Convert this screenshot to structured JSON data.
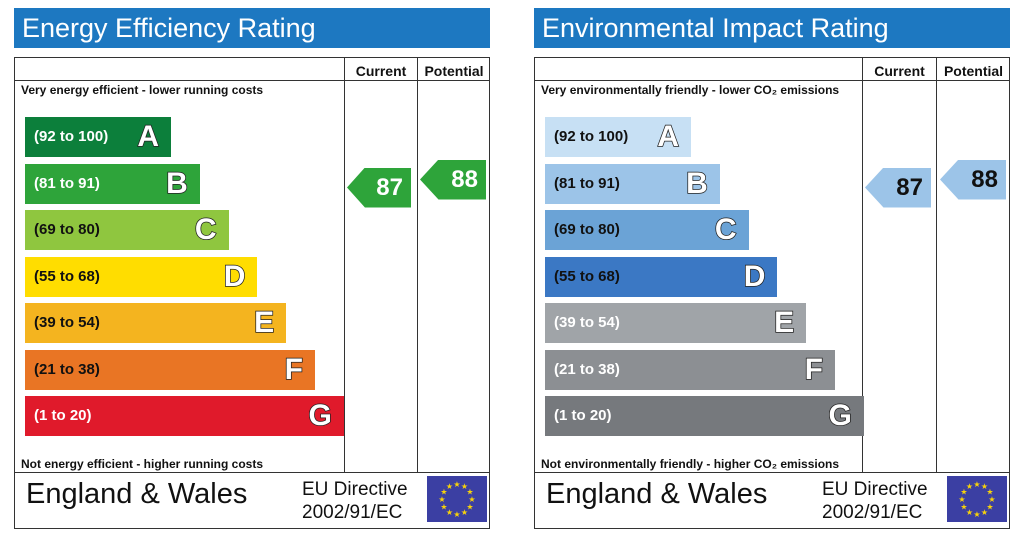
{
  "colors": {
    "header_bg": "#1d78c1",
    "flag_bg": "#3b3fa3",
    "flag_stars": "#f7d20b",
    "energy_bands": [
      "#0c7f3b",
      "#2ea43a",
      "#8fc63f",
      "#ffdd00",
      "#f4b41f",
      "#e97524",
      "#e01a2b"
    ],
    "environment_bands": [
      "#c7e0f4",
      "#9cc4e8",
      "#6ba3d6",
      "#3b78c4",
      "#a0a4a8",
      "#8c8f93",
      "#76797d"
    ]
  },
  "panels": [
    {
      "title": "Energy Efficiency Rating",
      "col_current": "Current",
      "col_potential": "Potential",
      "top_note": "Very energy efficient - lower running costs",
      "bottom_note": "Not energy efficient - higher running costs",
      "region": "England & Wales",
      "directive_line1": "EU Directive",
      "directive_line2": "2002/91/EC",
      "flag_icon": "eu-flag-icon",
      "bands": [
        {
          "range": "(92 to 100)",
          "letter": "A"
        },
        {
          "range": "(81 to 91)",
          "letter": "B"
        },
        {
          "range": "(69 to 80)",
          "letter": "C"
        },
        {
          "range": "(55 to 68)",
          "letter": "D"
        },
        {
          "range": "(39 to 54)",
          "letter": "E"
        },
        {
          "range": "(21 to 38)",
          "letter": "F"
        },
        {
          "range": "(1 to 20)",
          "letter": "G"
        }
      ],
      "current": {
        "value": "87",
        "band": "B"
      },
      "potential": {
        "value": "88",
        "band": "B"
      }
    },
    {
      "title": "Environmental Impact Rating",
      "col_current": "Current",
      "col_potential": "Potential",
      "top_note": "Very environmentally friendly - lower CO₂ emissions",
      "bottom_note": "Not environmentally friendly - higher CO₂ emissions",
      "region": "England & Wales",
      "directive_line1": "EU Directive",
      "directive_line2": "2002/91/EC",
      "flag_icon": "eu-flag-icon",
      "bands": [
        {
          "range": "(92 to 100)",
          "letter": "A"
        },
        {
          "range": "(81 to 91)",
          "letter": "B"
        },
        {
          "range": "(69 to 80)",
          "letter": "C"
        },
        {
          "range": "(55 to 68)",
          "letter": "D"
        },
        {
          "range": "(39 to 54)",
          "letter": "E"
        },
        {
          "range": "(21 to 38)",
          "letter": "F"
        },
        {
          "range": "(1 to 20)",
          "letter": "G"
        }
      ],
      "current": {
        "value": "87",
        "band": "B"
      },
      "potential": {
        "value": "88",
        "band": "B"
      }
    }
  ],
  "chart_data": [
    {
      "type": "bar",
      "title": "Energy Efficiency Rating",
      "categories": [
        "A",
        "B",
        "C",
        "D",
        "E",
        "F",
        "G"
      ],
      "ranges": [
        "(92 to 100)",
        "(81 to 91)",
        "(69 to 80)",
        "(55 to 68)",
        "(39 to 54)",
        "(21 to 38)",
        "(1 to 20)"
      ],
      "series": [
        {
          "name": "Current",
          "value": 87,
          "band": "B"
        },
        {
          "name": "Potential",
          "value": 88,
          "band": "B"
        }
      ]
    },
    {
      "type": "bar",
      "title": "Environmental Impact Rating",
      "categories": [
        "A",
        "B",
        "C",
        "D",
        "E",
        "F",
        "G"
      ],
      "ranges": [
        "(92 to 100)",
        "(81 to 91)",
        "(69 to 80)",
        "(55 to 68)",
        "(39 to 54)",
        "(21 to 38)",
        "(1 to 20)"
      ],
      "series": [
        {
          "name": "Current",
          "value": 87,
          "band": "B"
        },
        {
          "name": "Potential",
          "value": 88,
          "band": "B"
        }
      ]
    }
  ]
}
